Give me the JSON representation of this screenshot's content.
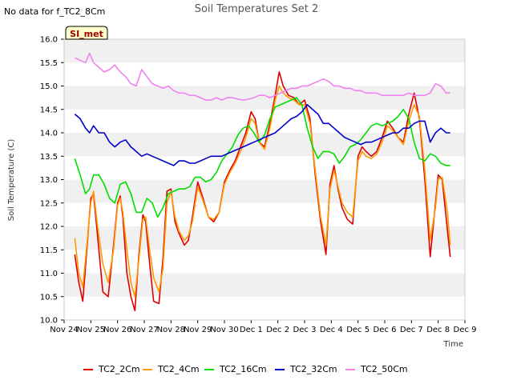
{
  "header": {
    "no_data_text": "No data for f_TC2_8Cm"
  },
  "badge": {
    "label": "SI_met",
    "fill": "#ffffcc",
    "text_color": "#a00000"
  },
  "chart_data": {
    "type": "line",
    "title": "Soil Temperatures Set 2",
    "xlabel": "Time",
    "ylabel": "Soil Temperature (C)",
    "ylim": [
      10.0,
      16.0
    ],
    "xlim": [
      0,
      15
    ],
    "x_unit": "days since Nov 24",
    "yticks": [
      "10.0",
      "10.5",
      "11.0",
      "11.5",
      "12.0",
      "12.5",
      "13.0",
      "13.5",
      "14.0",
      "14.5",
      "15.0",
      "15.5",
      "16.0"
    ],
    "xticks": [
      "Nov 24",
      "Nov 25",
      "Nov 26",
      "Nov 27",
      "Nov 28",
      "Nov 29",
      "Nov 30",
      "Dec 1",
      "Dec 2",
      "Dec 3",
      "Dec 4",
      "Dec 5",
      "Dec 6",
      "Dec 7",
      "Dec 8",
      "Dec 9"
    ],
    "grid": "alternating horizontal bands",
    "legend_position": "bottom",
    "series": [
      {
        "name": "TC2_2Cm",
        "color": "#dd0000",
        "x": [
          0.4,
          0.55,
          0.7,
          0.85,
          1.0,
          1.1,
          1.25,
          1.45,
          1.65,
          1.85,
          2.0,
          2.1,
          2.2,
          2.35,
          2.5,
          2.65,
          2.8,
          2.95,
          3.05,
          3.2,
          3.35,
          3.55,
          3.7,
          3.85,
          4.0,
          4.15,
          4.3,
          4.5,
          4.65,
          4.8,
          5.0,
          5.2,
          5.4,
          5.6,
          5.8,
          6.0,
          6.2,
          6.4,
          6.6,
          6.8,
          7.0,
          7.15,
          7.3,
          7.5,
          7.7,
          7.9,
          8.05,
          8.2,
          8.4,
          8.6,
          8.8,
          9.0,
          9.2,
          9.4,
          9.6,
          9.8,
          9.95,
          10.1,
          10.25,
          10.4,
          10.6,
          10.8,
          11.0,
          11.15,
          11.3,
          11.5,
          11.7,
          11.9,
          12.1,
          12.3,
          12.5,
          12.7,
          12.9,
          13.1,
          13.3,
          13.5,
          13.7,
          13.9,
          14.0,
          14.15,
          14.35,
          14.45
        ],
        "y": [
          11.4,
          10.8,
          10.4,
          11.5,
          12.6,
          12.7,
          11.8,
          10.6,
          10.5,
          11.6,
          12.5,
          12.65,
          12.2,
          11.0,
          10.5,
          10.2,
          11.4,
          12.25,
          12.1,
          11.2,
          10.4,
          10.35,
          11.3,
          12.75,
          12.8,
          12.1,
          11.85,
          11.6,
          11.7,
          12.2,
          12.95,
          12.6,
          12.2,
          12.1,
          12.3,
          12.95,
          13.2,
          13.4,
          13.7,
          14.0,
          14.45,
          14.3,
          13.8,
          13.7,
          14.2,
          14.8,
          15.3,
          15.0,
          14.8,
          14.75,
          14.6,
          14.7,
          14.3,
          13.1,
          12.1,
          11.4,
          12.9,
          13.3,
          12.8,
          12.4,
          12.15,
          12.05,
          13.5,
          13.7,
          13.6,
          13.5,
          13.6,
          13.9,
          14.25,
          14.1,
          13.9,
          13.8,
          14.4,
          14.85,
          14.3,
          13.0,
          11.35,
          12.5,
          13.1,
          13.0,
          11.9,
          11.35
        ]
      },
      {
        "name": "TC2_4Cm",
        "color": "#ff9900",
        "x": [
          0.4,
          0.55,
          0.7,
          0.85,
          1.0,
          1.1,
          1.25,
          1.45,
          1.65,
          1.85,
          2.0,
          2.1,
          2.2,
          2.35,
          2.5,
          2.65,
          2.8,
          2.95,
          3.05,
          3.2,
          3.35,
          3.55,
          3.7,
          3.85,
          4.0,
          4.15,
          4.3,
          4.5,
          4.65,
          4.8,
          5.0,
          5.2,
          5.4,
          5.6,
          5.8,
          6.0,
          6.2,
          6.4,
          6.6,
          6.8,
          7.0,
          7.15,
          7.3,
          7.5,
          7.7,
          7.9,
          8.05,
          8.2,
          8.4,
          8.6,
          8.8,
          9.0,
          9.2,
          9.4,
          9.6,
          9.8,
          9.95,
          10.1,
          10.25,
          10.4,
          10.6,
          10.8,
          11.0,
          11.15,
          11.3,
          11.5,
          11.7,
          11.9,
          12.1,
          12.3,
          12.5,
          12.7,
          12.9,
          13.1,
          13.3,
          13.5,
          13.7,
          13.9,
          14.0,
          14.15,
          14.35,
          14.45
        ],
        "y": [
          11.75,
          11.0,
          10.7,
          11.6,
          12.5,
          12.75,
          12.0,
          11.2,
          10.8,
          11.5,
          12.45,
          12.6,
          12.3,
          11.5,
          10.8,
          10.5,
          11.3,
          12.15,
          12.2,
          11.5,
          10.9,
          10.6,
          11.1,
          12.5,
          12.75,
          12.2,
          11.9,
          11.7,
          11.8,
          12.1,
          12.85,
          12.55,
          12.2,
          12.15,
          12.3,
          12.9,
          13.15,
          13.35,
          13.6,
          13.9,
          14.3,
          14.2,
          13.8,
          13.65,
          14.1,
          14.7,
          15.0,
          14.85,
          14.75,
          14.7,
          14.6,
          14.6,
          14.2,
          13.2,
          12.2,
          11.6,
          12.8,
          13.2,
          12.85,
          12.5,
          12.3,
          12.2,
          13.4,
          13.6,
          13.5,
          13.45,
          13.55,
          13.8,
          14.15,
          14.05,
          13.9,
          13.75,
          14.25,
          14.6,
          14.35,
          13.2,
          11.7,
          12.4,
          13.0,
          13.05,
          12.3,
          11.6
        ]
      },
      {
        "name": "TC2_16Cm",
        "color": "#00dd00",
        "x": [
          0.4,
          0.6,
          0.8,
          0.95,
          1.1,
          1.3,
          1.5,
          1.7,
          1.9,
          2.1,
          2.3,
          2.5,
          2.7,
          2.9,
          3.1,
          3.3,
          3.5,
          3.7,
          3.9,
          4.1,
          4.3,
          4.5,
          4.7,
          4.9,
          5.1,
          5.3,
          5.5,
          5.7,
          5.9,
          6.1,
          6.3,
          6.5,
          6.7,
          6.9,
          7.1,
          7.3,
          7.5,
          7.7,
          7.9,
          8.1,
          8.3,
          8.5,
          8.7,
          8.9,
          9.1,
          9.3,
          9.5,
          9.7,
          9.9,
          10.1,
          10.3,
          10.5,
          10.7,
          10.9,
          11.1,
          11.3,
          11.5,
          11.7,
          11.9,
          12.1,
          12.3,
          12.5,
          12.7,
          12.9,
          13.1,
          13.3,
          13.5,
          13.7,
          13.9,
          14.1,
          14.3,
          14.45
        ],
        "y": [
          13.45,
          13.1,
          12.7,
          12.8,
          13.1,
          13.1,
          12.9,
          12.6,
          12.5,
          12.9,
          12.95,
          12.7,
          12.3,
          12.3,
          12.6,
          12.5,
          12.2,
          12.4,
          12.7,
          12.75,
          12.8,
          12.8,
          12.85,
          13.05,
          13.05,
          12.95,
          13.0,
          13.15,
          13.4,
          13.55,
          13.7,
          13.95,
          14.1,
          14.15,
          14.0,
          13.8,
          13.95,
          14.3,
          14.55,
          14.6,
          14.65,
          14.7,
          14.75,
          14.6,
          14.1,
          13.7,
          13.45,
          13.6,
          13.6,
          13.55,
          13.35,
          13.5,
          13.7,
          13.75,
          13.85,
          14.0,
          14.15,
          14.2,
          14.15,
          14.2,
          14.25,
          14.35,
          14.5,
          14.3,
          13.8,
          13.45,
          13.4,
          13.55,
          13.5,
          13.35,
          13.3,
          13.3
        ]
      },
      {
        "name": "TC2_32Cm",
        "color": "#0000cc",
        "x": [
          0.4,
          0.6,
          0.8,
          0.95,
          1.1,
          1.3,
          1.5,
          1.7,
          1.9,
          2.1,
          2.3,
          2.5,
          2.7,
          2.9,
          3.1,
          3.3,
          3.5,
          3.7,
          3.9,
          4.1,
          4.3,
          4.5,
          4.7,
          4.9,
          5.1,
          5.3,
          5.5,
          5.7,
          5.9,
          6.1,
          6.3,
          6.5,
          6.7,
          6.9,
          7.1,
          7.3,
          7.5,
          7.7,
          7.9,
          8.1,
          8.3,
          8.5,
          8.7,
          8.9,
          9.1,
          9.3,
          9.5,
          9.7,
          9.9,
          10.1,
          10.3,
          10.5,
          10.7,
          10.9,
          11.1,
          11.3,
          11.5,
          11.7,
          11.9,
          12.1,
          12.3,
          12.5,
          12.7,
          12.9,
          13.1,
          13.3,
          13.5,
          13.7,
          13.9,
          14.1,
          14.3,
          14.45
        ],
        "y": [
          14.4,
          14.3,
          14.1,
          14.0,
          14.15,
          14.0,
          14.0,
          13.8,
          13.7,
          13.8,
          13.85,
          13.7,
          13.6,
          13.5,
          13.55,
          13.5,
          13.45,
          13.4,
          13.35,
          13.3,
          13.4,
          13.4,
          13.35,
          13.35,
          13.4,
          13.45,
          13.5,
          13.5,
          13.5,
          13.55,
          13.6,
          13.65,
          13.7,
          13.75,
          13.8,
          13.85,
          13.9,
          13.95,
          14.0,
          14.1,
          14.2,
          14.3,
          14.35,
          14.45,
          14.6,
          14.5,
          14.4,
          14.2,
          14.2,
          14.1,
          14.0,
          13.9,
          13.85,
          13.8,
          13.75,
          13.8,
          13.8,
          13.85,
          13.9,
          13.95,
          14.0,
          14.0,
          14.1,
          14.1,
          14.2,
          14.25,
          14.25,
          13.8,
          14.0,
          14.1,
          14.0,
          14.0
        ]
      },
      {
        "name": "TC2_50Cm",
        "color": "#ee82ee",
        "x": [
          0.4,
          0.6,
          0.8,
          0.95,
          1.1,
          1.3,
          1.5,
          1.7,
          1.9,
          2.1,
          2.3,
          2.5,
          2.7,
          2.9,
          3.1,
          3.3,
          3.5,
          3.7,
          3.9,
          4.1,
          4.3,
          4.5,
          4.7,
          4.9,
          5.1,
          5.3,
          5.5,
          5.7,
          5.9,
          6.1,
          6.3,
          6.5,
          6.7,
          6.9,
          7.1,
          7.3,
          7.5,
          7.7,
          7.9,
          8.1,
          8.3,
          8.5,
          8.7,
          8.9,
          9.1,
          9.3,
          9.5,
          9.7,
          9.9,
          10.1,
          10.3,
          10.5,
          10.7,
          10.9,
          11.1,
          11.3,
          11.5,
          11.7,
          11.9,
          12.1,
          12.3,
          12.5,
          12.7,
          12.9,
          13.1,
          13.3,
          13.5,
          13.7,
          13.9,
          14.1,
          14.3,
          14.45
        ],
        "y": [
          15.6,
          15.55,
          15.5,
          15.7,
          15.5,
          15.4,
          15.3,
          15.35,
          15.45,
          15.3,
          15.2,
          15.05,
          15.0,
          15.35,
          15.2,
          15.05,
          15.0,
          14.95,
          15.0,
          14.9,
          14.85,
          14.85,
          14.8,
          14.8,
          14.75,
          14.7,
          14.7,
          14.75,
          14.7,
          14.75,
          14.75,
          14.72,
          14.7,
          14.72,
          14.75,
          14.8,
          14.8,
          14.75,
          14.8,
          14.85,
          14.9,
          14.95,
          14.95,
          15.0,
          15.0,
          15.05,
          15.1,
          15.15,
          15.1,
          15.0,
          15.0,
          14.95,
          14.95,
          14.9,
          14.9,
          14.85,
          14.85,
          14.85,
          14.8,
          14.8,
          14.8,
          14.8,
          14.8,
          14.85,
          14.8,
          14.8,
          14.8,
          14.85,
          15.05,
          15.0,
          14.85,
          14.85
        ]
      }
    ]
  }
}
